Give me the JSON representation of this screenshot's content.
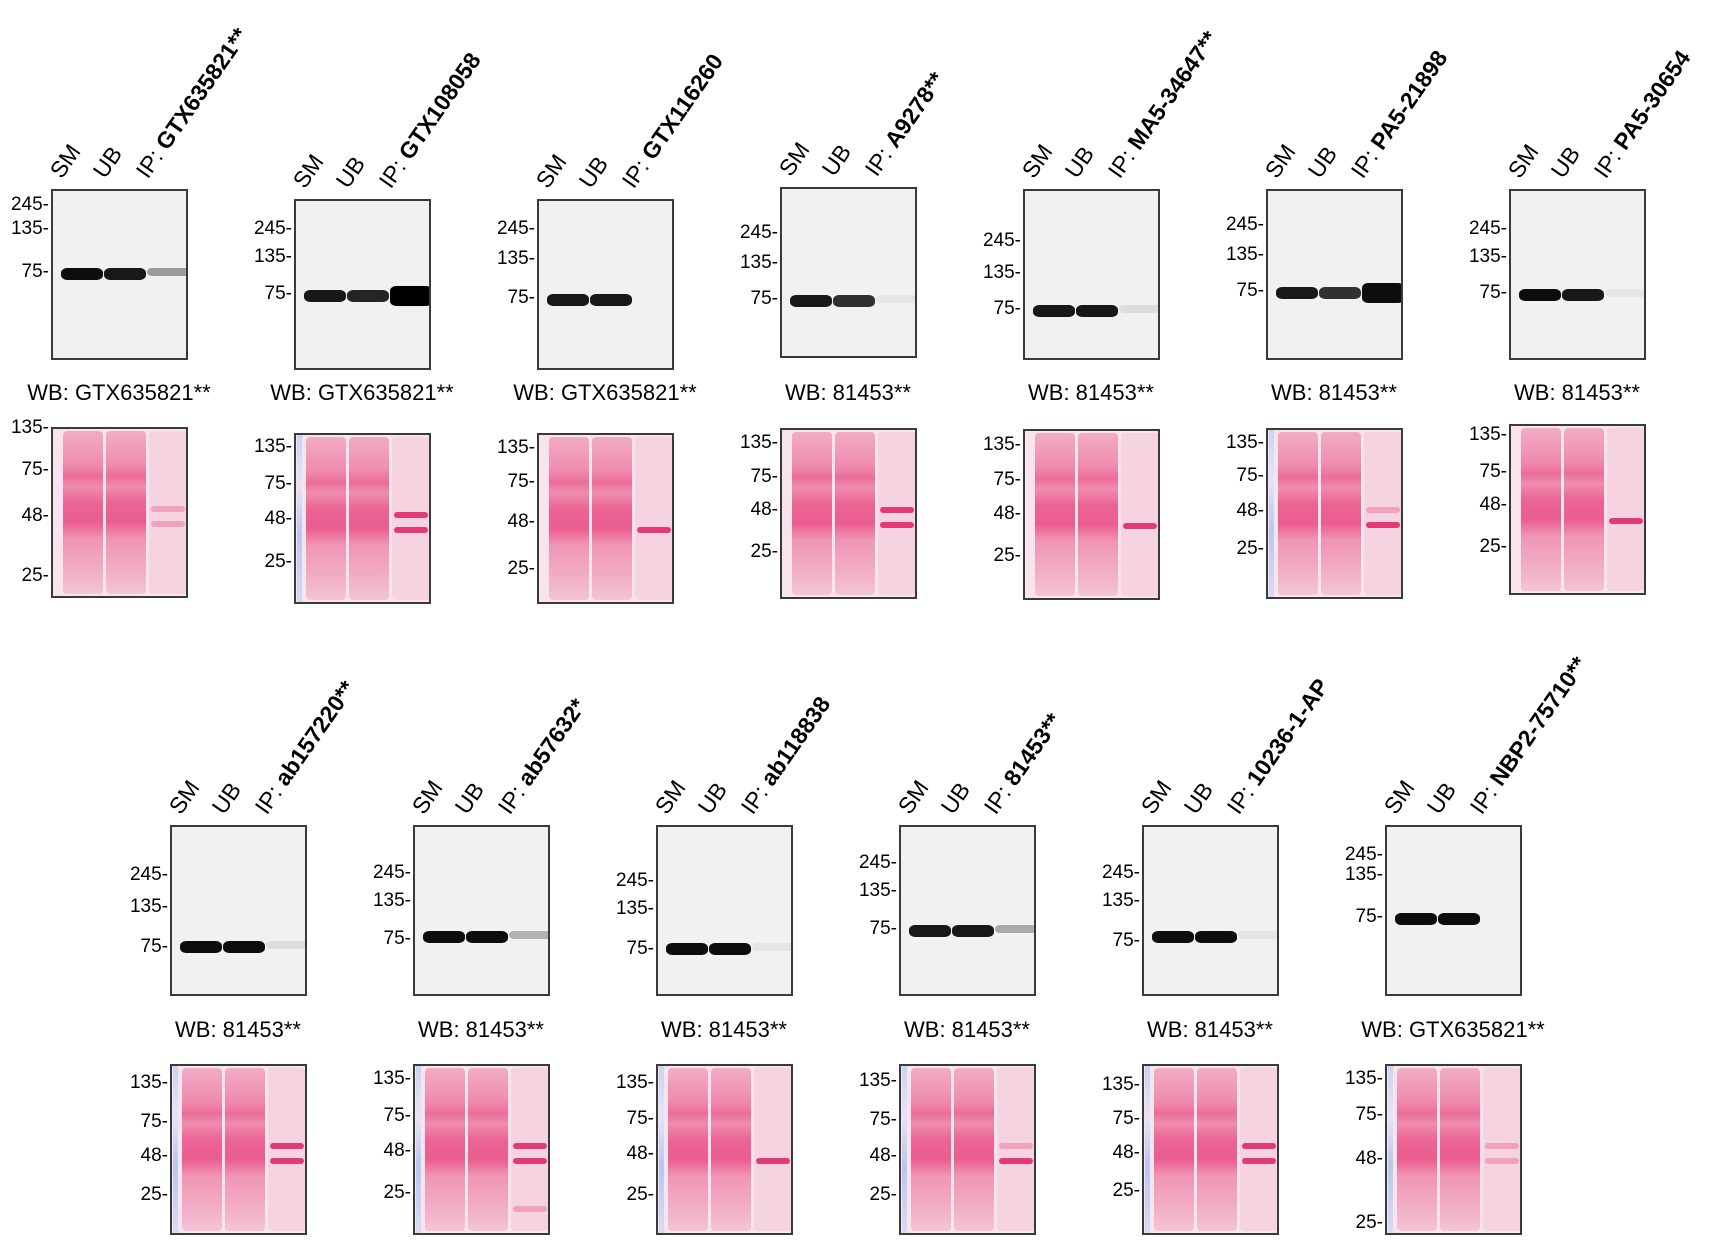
{
  "figure": {
    "lane_labels": [
      "SM",
      "UB",
      "IP: "
    ],
    "colors": {
      "blot_background": "#f1f1f1",
      "band": "#000000",
      "ponceau_background": "#f7e4ec",
      "ponceau_stain": "#e8457f",
      "frame": "#3a3a3a"
    },
    "rows": [
      {
        "panels": [
          {
            "ip": "GTX635821**",
            "wb": "WB: GTX635821**",
            "blot_markers": [
              "245",
              "135",
              "75"
            ],
            "band_intensity": {
              "SM": 0.95,
              "UB": 0.9,
              "IP": 0.55
            },
            "ponceau_markers": [
              "135",
              "75",
              "48",
              "25"
            ],
            "ip_ponceau_bands": [
              "~55 faint",
              "~50 faint"
            ]
          },
          {
            "ip": "GTX108058",
            "wb": "WB: GTX635821**",
            "blot_markers": [
              "245",
              "135",
              "75"
            ],
            "band_intensity": {
              "SM": 0.9,
              "UB": 0.85,
              "IP": 1.0
            },
            "ponceau_markers": [
              "135",
              "75",
              "48",
              "25"
            ],
            "ip_ponceau_bands": [
              "~55",
              "~50"
            ]
          },
          {
            "ip": "GTX116260",
            "wb": "WB: GTX635821**",
            "blot_markers": [
              "245",
              "135",
              "75"
            ],
            "band_intensity": {
              "SM": 0.9,
              "UB": 0.9,
              "IP": 0.0
            },
            "ponceau_markers": [
              "135",
              "75",
              "48",
              "25"
            ],
            "ip_ponceau_bands": [
              "~50"
            ]
          },
          {
            "ip": "A9278**",
            "wb": "WB: 81453**",
            "blot_markers": [
              "245",
              "135",
              "75"
            ],
            "band_intensity": {
              "SM": 0.9,
              "UB": 0.8,
              "IP": 0.08
            },
            "ponceau_markers": [
              "135",
              "75",
              "48",
              "25"
            ],
            "ip_ponceau_bands": [
              "~55",
              "~50"
            ]
          },
          {
            "ip": "MA5-34647**",
            "wb": "WB: 81453**",
            "blot_markers": [
              "245",
              "135",
              "75"
            ],
            "band_intensity": {
              "SM": 0.9,
              "UB": 0.9,
              "IP": 0.12
            },
            "ponceau_markers": [
              "135",
              "75",
              "48",
              "25"
            ],
            "ip_ponceau_bands": [
              "~50"
            ]
          },
          {
            "ip": "PA5-21898",
            "wb": "WB: 81453**",
            "blot_markers": [
              "245",
              "135",
              "75"
            ],
            "band_intensity": {
              "SM": 0.9,
              "UB": 0.8,
              "IP": 0.95
            },
            "ponceau_markers": [
              "135",
              "75",
              "48",
              "25"
            ],
            "ip_ponceau_bands": [
              "~55 faint",
              "~50"
            ]
          },
          {
            "ip": "PA5-30654",
            "wb": "WB: 81453**",
            "blot_markers": [
              "245",
              "135",
              "75"
            ],
            "band_intensity": {
              "SM": 0.95,
              "UB": 0.9,
              "IP": 0.06
            },
            "ponceau_markers": [
              "135",
              "75",
              "48",
              "25"
            ],
            "ip_ponceau_bands": [
              "~50"
            ]
          }
        ]
      },
      {
        "panels": [
          {
            "ip": "ab157220**",
            "wb": "WB: 81453**",
            "blot_markers": [
              "245",
              "135",
              "75"
            ],
            "band_intensity": {
              "SM": 0.95,
              "UB": 0.95,
              "IP": 0.12
            },
            "ponceau_markers": [
              "135",
              "75",
              "48",
              "25"
            ],
            "ip_ponceau_bands": [
              "~55",
              "~50"
            ]
          },
          {
            "ip": "ab57632*",
            "wb": "WB: 81453**",
            "blot_markers": [
              "245",
              "135",
              "75"
            ],
            "band_intensity": {
              "SM": 0.95,
              "UB": 0.95,
              "IP": 0.4
            },
            "ponceau_markers": [
              "135",
              "75",
              "48",
              "25"
            ],
            "ip_ponceau_bands": [
              "~55",
              "~50",
              "~25 faint"
            ]
          },
          {
            "ip": "ab118838",
            "wb": "WB: 81453**",
            "blot_markers": [
              "245",
              "135",
              "75"
            ],
            "band_intensity": {
              "SM": 0.95,
              "UB": 0.95,
              "IP": 0.04
            },
            "ponceau_markers": [
              "135",
              "75",
              "48",
              "25"
            ],
            "ip_ponceau_bands": [
              "~50"
            ]
          },
          {
            "ip": "81453**",
            "wb": "WB: 81453**",
            "blot_markers": [
              "245",
              "135",
              "75"
            ],
            "band_intensity": {
              "SM": 0.9,
              "UB": 0.9,
              "IP": 0.45
            },
            "ponceau_markers": [
              "135",
              "75",
              "48",
              "25"
            ],
            "ip_ponceau_bands": [
              "~55 faint",
              "~50"
            ]
          },
          {
            "ip": "10236-1-AP",
            "wb": "WB: 81453**",
            "blot_markers": [
              "245",
              "135",
              "75"
            ],
            "band_intensity": {
              "SM": 0.95,
              "UB": 0.95,
              "IP": 0.05
            },
            "ponceau_markers": [
              "135",
              "75",
              "48",
              "25"
            ],
            "ip_ponceau_bands": [
              "~55",
              "~50"
            ]
          },
          {
            "ip": "NBP2-75710**",
            "wb": "WB: GTX635821**",
            "blot_markers": [
              "245",
              "135",
              "75"
            ],
            "band_intensity": {
              "SM": 0.95,
              "UB": 0.95,
              "IP": 0.0
            },
            "ponceau_markers": [
              "135",
              "75",
              "48",
              "25"
            ],
            "ip_ponceau_bands": [
              "~55 faint",
              "~50 faint"
            ]
          }
        ]
      }
    ]
  }
}
